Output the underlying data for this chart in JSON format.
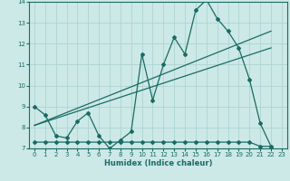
{
  "title": "",
  "xlabel": "Humidex (Indice chaleur)",
  "bg_color": "#cce9e7",
  "grid_color": "#aed4d1",
  "line_color": "#1a6b65",
  "xlim": [
    -0.5,
    23.5
  ],
  "ylim": [
    7.0,
    14.0
  ],
  "yticks": [
    7,
    8,
    9,
    10,
    11,
    12,
    13,
    14
  ],
  "xticks": [
    0,
    1,
    2,
    3,
    4,
    5,
    6,
    7,
    8,
    9,
    10,
    11,
    12,
    13,
    14,
    15,
    16,
    17,
    18,
    19,
    20,
    21,
    22,
    23
  ],
  "series_main_x": [
    0,
    1,
    2,
    3,
    4,
    5,
    6,
    7,
    8,
    9,
    10,
    11,
    12,
    13,
    14,
    15,
    16,
    17,
    18,
    19,
    20,
    21,
    22
  ],
  "series_main_y": [
    9.0,
    8.6,
    7.6,
    7.5,
    8.3,
    8.7,
    7.6,
    7.0,
    7.4,
    7.8,
    11.5,
    9.3,
    11.0,
    12.3,
    11.5,
    13.6,
    14.1,
    13.2,
    12.6,
    11.8,
    10.3,
    8.2,
    7.1
  ],
  "series_flat_x": [
    0,
    1,
    2,
    3,
    4,
    5,
    6,
    7,
    8,
    9,
    10,
    11,
    12,
    13,
    14,
    15,
    16,
    17,
    18,
    19,
    20,
    21,
    22
  ],
  "series_flat_y": [
    7.3,
    7.3,
    7.3,
    7.3,
    7.3,
    7.3,
    7.3,
    7.3,
    7.3,
    7.3,
    7.3,
    7.3,
    7.3,
    7.3,
    7.3,
    7.3,
    7.3,
    7.3,
    7.3,
    7.3,
    7.3,
    7.1,
    7.1
  ],
  "trend1_x": [
    0,
    22
  ],
  "trend1_y": [
    8.1,
    12.6
  ],
  "trend2_x": [
    0,
    22
  ],
  "trend2_y": [
    8.1,
    11.8
  ]
}
